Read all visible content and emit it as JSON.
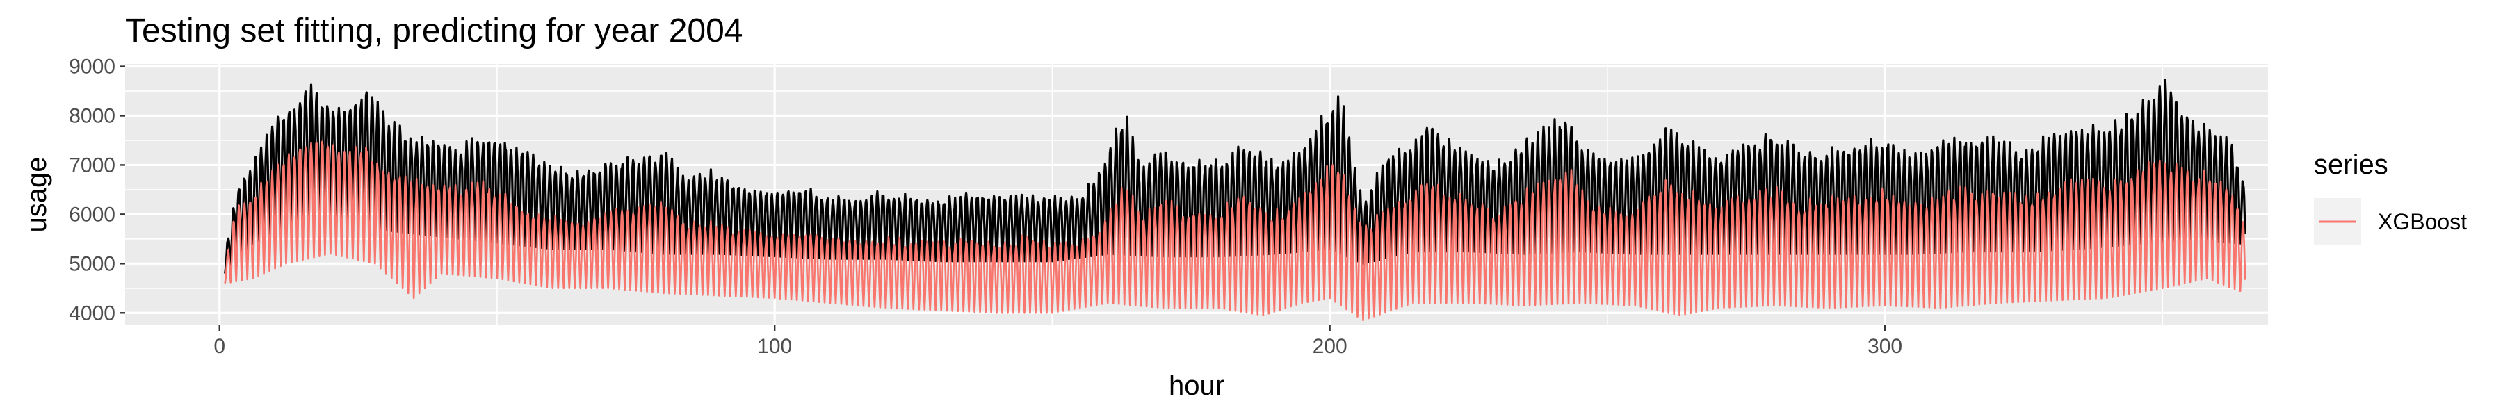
{
  "chart_data": {
    "type": "line",
    "title": "Testing set fitting, predicting for year 2004",
    "xlabel": "hour",
    "ylabel": "usage",
    "xlim": [
      -17,
      369
    ],
    "ylim": [
      3750,
      9050
    ],
    "xticks": [
      0,
      100,
      200,
      300
    ],
    "xtick_labels": [
      "0",
      "100",
      "200",
      "300"
    ],
    "yticks": [
      4000,
      5000,
      6000,
      7000,
      8000,
      9000
    ],
    "ytick_labels": [
      "4000",
      "5000",
      "6000",
      "7000",
      "8000",
      "9000"
    ],
    "grid": true,
    "panel_background": "#ebebeb",
    "legend": {
      "title": "series",
      "position": "right",
      "entries": [
        {
          "label": "XGBoost",
          "color": "#f8766d"
        }
      ]
    },
    "series": [
      {
        "color": "#000000",
        "style": "daily-oscillating line, actual usage",
        "x_range": [
          1,
          365
        ],
        "upper_envelope": [
          [
            1,
            5200
          ],
          [
            3,
            6600
          ],
          [
            6,
            7100
          ],
          [
            10,
            8000
          ],
          [
            13,
            8300
          ],
          [
            16,
            8700
          ],
          [
            20,
            8300
          ],
          [
            24,
            8400
          ],
          [
            27,
            8700
          ],
          [
            30,
            8000
          ],
          [
            34,
            7700
          ],
          [
            38,
            7600
          ],
          [
            43,
            7400
          ],
          [
            48,
            7700
          ],
          [
            52,
            7600
          ],
          [
            56,
            7300
          ],
          [
            60,
            7000
          ],
          [
            65,
            6900
          ],
          [
            70,
            7100
          ],
          [
            75,
            7200
          ],
          [
            80,
            7400
          ],
          [
            84,
            6700
          ],
          [
            88,
            6950
          ],
          [
            92,
            6700
          ],
          [
            96,
            6600
          ],
          [
            100,
            6500
          ],
          [
            105,
            6600
          ],
          [
            110,
            6400
          ],
          [
            115,
            6400
          ],
          [
            120,
            6500
          ],
          [
            125,
            6400
          ],
          [
            130,
            6350
          ],
          [
            135,
            6450
          ],
          [
            140,
            6400
          ],
          [
            145,
            6450
          ],
          [
            150,
            6400
          ],
          [
            155,
            6350
          ],
          [
            160,
            7300
          ],
          [
            163,
            8200
          ],
          [
            166,
            7000
          ],
          [
            170,
            7450
          ],
          [
            175,
            7100
          ],
          [
            180,
            7150
          ],
          [
            185,
            7500
          ],
          [
            190,
            7100
          ],
          [
            195,
            7400
          ],
          [
            199,
            8200
          ],
          [
            202,
            8500
          ],
          [
            206,
            6200
          ],
          [
            210,
            7300
          ],
          [
            214,
            7400
          ],
          [
            218,
            8000
          ],
          [
            222,
            7500
          ],
          [
            226,
            7300
          ],
          [
            230,
            7100
          ],
          [
            235,
            7600
          ],
          [
            240,
            7900
          ],
          [
            243,
            8100
          ],
          [
            246,
            7400
          ],
          [
            250,
            7200
          ],
          [
            255,
            7200
          ],
          [
            260,
            7850
          ],
          [
            265,
            7500
          ],
          [
            270,
            7300
          ],
          [
            275,
            7600
          ],
          [
            280,
            7700
          ],
          [
            285,
            7300
          ],
          [
            290,
            7400
          ],
          [
            295,
            7450
          ],
          [
            300,
            7650
          ],
          [
            305,
            7250
          ],
          [
            310,
            7550
          ],
          [
            315,
            7650
          ],
          [
            320,
            7600
          ],
          [
            325,
            7350
          ],
          [
            330,
            7700
          ],
          [
            335,
            7900
          ],
          [
            340,
            7800
          ],
          [
            344,
            8100
          ],
          [
            348,
            8600
          ],
          [
            351,
            8850
          ],
          [
            354,
            8200
          ],
          [
            358,
            7800
          ],
          [
            362,
            7600
          ],
          [
            365,
            6600
          ]
        ],
        "lower_envelope": [
          [
            1,
            4800
          ],
          [
            6,
            5400
          ],
          [
            12,
            5800
          ],
          [
            20,
            6000
          ],
          [
            28,
            5700
          ],
          [
            36,
            5600
          ],
          [
            44,
            5500
          ],
          [
            52,
            5400
          ],
          [
            60,
            5300
          ],
          [
            70,
            5300
          ],
          [
            80,
            5200
          ],
          [
            90,
            5200
          ],
          [
            100,
            5150
          ],
          [
            110,
            5100
          ],
          [
            120,
            5100
          ],
          [
            130,
            5050
          ],
          [
            140,
            5050
          ],
          [
            150,
            5050
          ],
          [
            160,
            5200
          ],
          [
            170,
            5150
          ],
          [
            180,
            5150
          ],
          [
            190,
            5200
          ],
          [
            200,
            5300
          ],
          [
            206,
            5000
          ],
          [
            215,
            5250
          ],
          [
            225,
            5250
          ],
          [
            235,
            5200
          ],
          [
            245,
            5250
          ],
          [
            255,
            5200
          ],
          [
            265,
            5200
          ],
          [
            275,
            5200
          ],
          [
            285,
            5200
          ],
          [
            295,
            5200
          ],
          [
            305,
            5200
          ],
          [
            315,
            5250
          ],
          [
            325,
            5250
          ],
          [
            335,
            5300
          ],
          [
            345,
            5400
          ],
          [
            355,
            5500
          ],
          [
            365,
            5400
          ]
        ]
      },
      {
        "name": "XGBoost",
        "color": "#f8766d",
        "style": "daily-oscillating line, predicted usage",
        "x_range": [
          1,
          365
        ],
        "upper_envelope": [
          [
            1,
            5000
          ],
          [
            3,
            6200
          ],
          [
            6,
            6500
          ],
          [
            10,
            7000
          ],
          [
            14,
            7500
          ],
          [
            18,
            7700
          ],
          [
            22,
            7300
          ],
          [
            26,
            7600
          ],
          [
            30,
            7000
          ],
          [
            34,
            6800
          ],
          [
            38,
            6700
          ],
          [
            43,
            6600
          ],
          [
            48,
            6700
          ],
          [
            52,
            6400
          ],
          [
            56,
            6100
          ],
          [
            60,
            6000
          ],
          [
            65,
            5900
          ],
          [
            70,
            6100
          ],
          [
            75,
            6200
          ],
          [
            80,
            6300
          ],
          [
            84,
            5900
          ],
          [
            88,
            5900
          ],
          [
            92,
            5800
          ],
          [
            96,
            5700
          ],
          [
            100,
            5600
          ],
          [
            105,
            5700
          ],
          [
            110,
            5600
          ],
          [
            115,
            5500
          ],
          [
            120,
            5600
          ],
          [
            125,
            5500
          ],
          [
            130,
            5500
          ],
          [
            135,
            5600
          ],
          [
            140,
            5500
          ],
          [
            145,
            5600
          ],
          [
            150,
            5500
          ],
          [
            155,
            5500
          ],
          [
            160,
            6000
          ],
          [
            163,
            6800
          ],
          [
            166,
            6000
          ],
          [
            170,
            6400
          ],
          [
            175,
            6100
          ],
          [
            180,
            6200
          ],
          [
            185,
            6500
          ],
          [
            190,
            6100
          ],
          [
            195,
            6400
          ],
          [
            199,
            7000
          ],
          [
            202,
            7100
          ],
          [
            206,
            5800
          ],
          [
            210,
            6200
          ],
          [
            214,
            6400
          ],
          [
            218,
            6800
          ],
          [
            222,
            6500
          ],
          [
            226,
            6300
          ],
          [
            230,
            6100
          ],
          [
            235,
            6500
          ],
          [
            240,
            6900
          ],
          [
            243,
            7100
          ],
          [
            246,
            6400
          ],
          [
            250,
            6200
          ],
          [
            255,
            6200
          ],
          [
            260,
            6800
          ],
          [
            265,
            6500
          ],
          [
            270,
            6300
          ],
          [
            275,
            6500
          ],
          [
            280,
            6600
          ],
          [
            285,
            6300
          ],
          [
            290,
            6400
          ],
          [
            295,
            6400
          ],
          [
            300,
            6600
          ],
          [
            305,
            6300
          ],
          [
            310,
            6500
          ],
          [
            315,
            6600
          ],
          [
            320,
            6600
          ],
          [
            325,
            6400
          ],
          [
            330,
            6600
          ],
          [
            335,
            6800
          ],
          [
            340,
            6700
          ],
          [
            344,
            6900
          ],
          [
            348,
            7100
          ],
          [
            351,
            7200
          ],
          [
            354,
            7000
          ],
          [
            358,
            6900
          ],
          [
            362,
            6700
          ],
          [
            365,
            5800
          ]
        ],
        "lower_envelope": [
          [
            1,
            4600
          ],
          [
            6,
            4700
          ],
          [
            12,
            5000
          ],
          [
            20,
            5200
          ],
          [
            28,
            5000
          ],
          [
            35,
            4300
          ],
          [
            40,
            4800
          ],
          [
            50,
            4700
          ],
          [
            60,
            4500
          ],
          [
            70,
            4500
          ],
          [
            80,
            4400
          ],
          [
            90,
            4350
          ],
          [
            100,
            4300
          ],
          [
            110,
            4200
          ],
          [
            120,
            4100
          ],
          [
            130,
            4050
          ],
          [
            140,
            4000
          ],
          [
            150,
            4000
          ],
          [
            160,
            4200
          ],
          [
            170,
            4100
          ],
          [
            180,
            4100
          ],
          [
            188,
            3950
          ],
          [
            195,
            4200
          ],
          [
            200,
            4300
          ],
          [
            206,
            3850
          ],
          [
            215,
            4200
          ],
          [
            225,
            4200
          ],
          [
            235,
            4150
          ],
          [
            245,
            4200
          ],
          [
            255,
            4150
          ],
          [
            263,
            3950
          ],
          [
            270,
            4100
          ],
          [
            280,
            4150
          ],
          [
            290,
            4100
          ],
          [
            300,
            4150
          ],
          [
            310,
            4100
          ],
          [
            320,
            4200
          ],
          [
            330,
            4250
          ],
          [
            340,
            4300
          ],
          [
            350,
            4500
          ],
          [
            358,
            4700
          ],
          [
            365,
            4400
          ]
        ]
      }
    ]
  }
}
